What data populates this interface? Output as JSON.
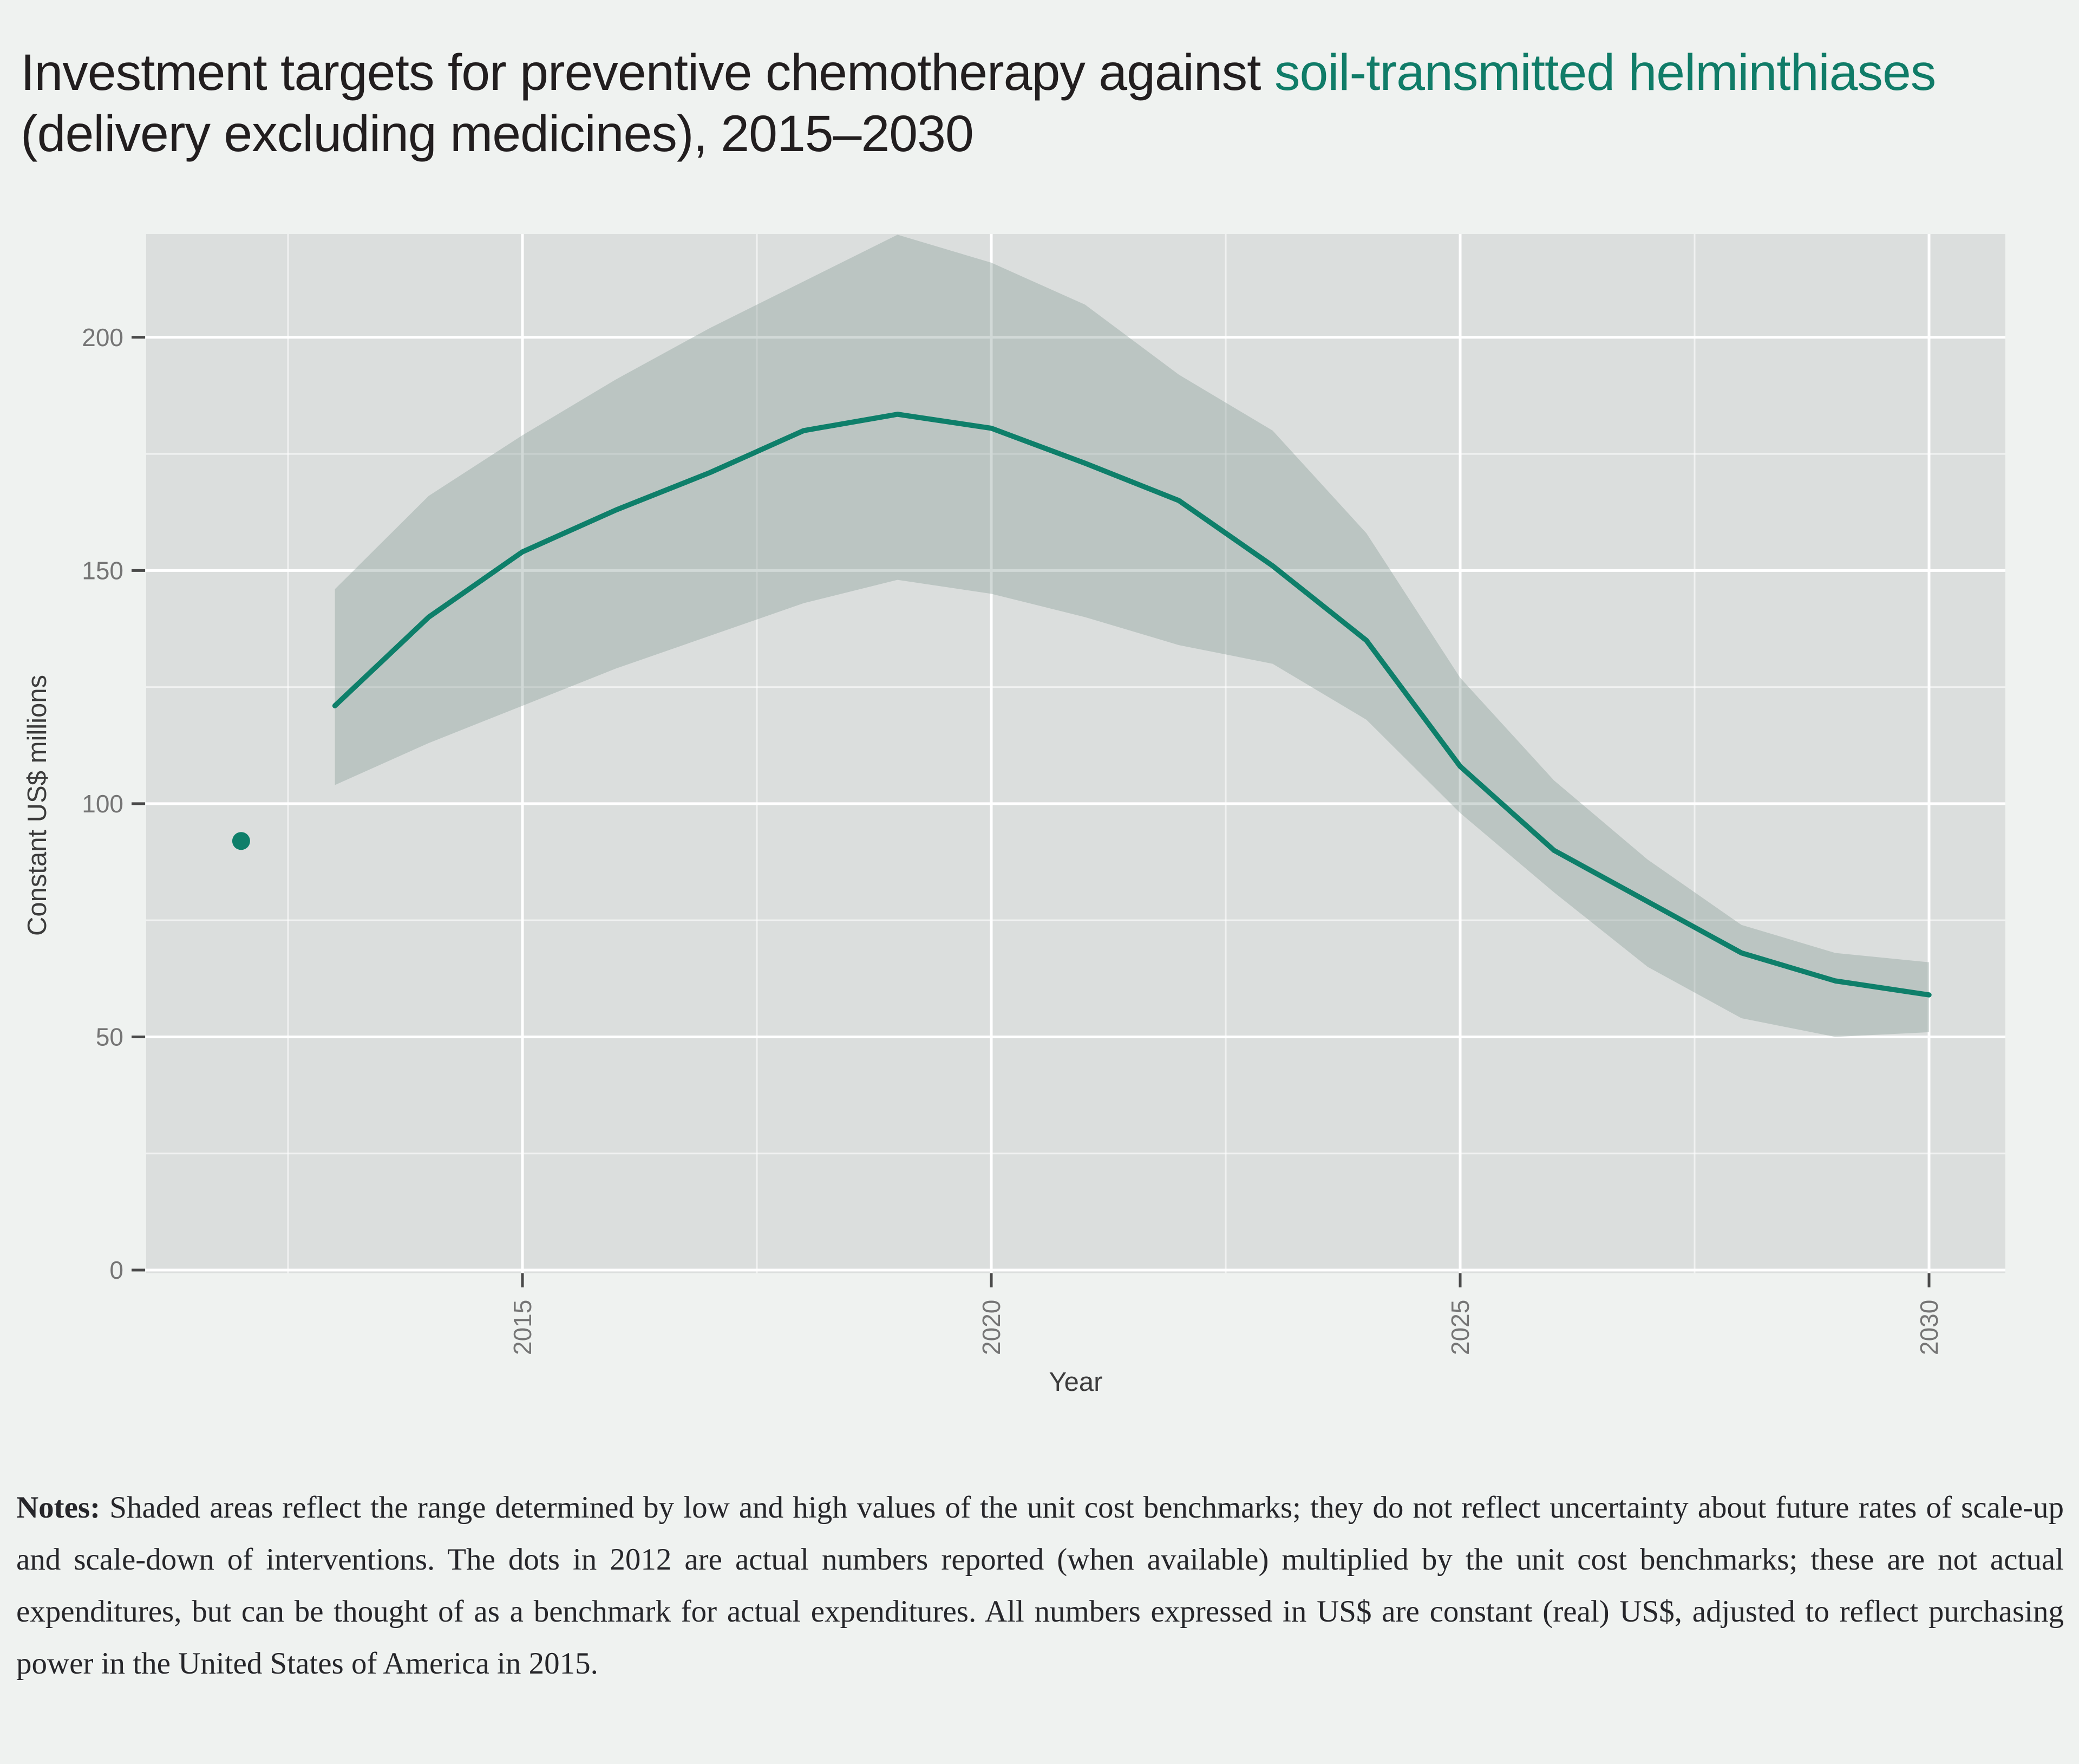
{
  "title": {
    "part1": "Investment targets for preventive chemotherapy against ",
    "highlight": "soil-transmitted helminthiases",
    "part2": " (delivery excluding medicines), 2015–2030"
  },
  "notes": {
    "label": "Notes:",
    "text": " Shaded areas reflect the range determined by low and high values of the unit cost benchmarks; they do not reflect uncertainty about future rates of scale-up and scale-down of interventions. The dots in 2012 are actual numbers reported (when available) multiplied by the unit cost benchmarks; these are not actual expenditures, but can be thought of as a benchmark for actual expenditures. All numbers expressed in US$ are constant (real) US$, adjusted to reflect purchasing power in the United States of America in 2015."
  },
  "chart_data": {
    "type": "line",
    "xlabel": "Year",
    "ylabel": "Constant US$ millions",
    "xlim": [
      2011,
      2030.8
    ],
    "ylim": [
      0,
      222.2
    ],
    "x_ticks": [
      2015,
      2020,
      2025,
      2030
    ],
    "x_tick_labels": [
      "2015",
      "2020",
      "2025",
      "2030"
    ],
    "y_ticks": [
      0,
      50,
      100,
      150,
      200
    ],
    "y_tick_labels": [
      "0",
      "50",
      "100",
      "150",
      "200"
    ],
    "grid": true,
    "legend_position": "none",
    "x": [
      2013,
      2014,
      2015,
      2016,
      2017,
      2018,
      2019,
      2020,
      2021,
      2022,
      2023,
      2024,
      2025,
      2026,
      2027,
      2028,
      2029,
      2030
    ],
    "series": [
      {
        "name": "investment-target-line",
        "type": "line",
        "color": "#0e7f6a",
        "values": [
          121,
          140,
          154,
          163,
          171,
          180,
          183.5,
          180.5,
          173,
          165,
          151,
          135,
          108,
          90,
          79,
          68,
          62,
          59
        ]
      }
    ],
    "band": {
      "name": "unit-cost-benchmark-range",
      "color": "#8da09a",
      "opacity": 0.4,
      "upper": [
        146,
        166,
        179,
        191,
        202,
        212,
        222,
        216,
        207,
        192,
        180,
        158,
        127,
        105,
        88,
        74,
        68,
        66
      ],
      "lower": [
        104,
        113,
        121,
        129,
        136,
        143,
        148,
        145,
        140,
        134,
        130,
        118,
        98,
        81,
        65,
        54,
        50,
        51
      ]
    },
    "points": [
      {
        "name": "actual-2012-dot",
        "x": 2012,
        "value": 92,
        "color": "#0e7f6a",
        "radius": 16.5
      }
    ]
  },
  "colors": {
    "page_bg": "#eff2f0",
    "panel_bg": "#dbdedd",
    "grid": "#ffffff",
    "accent_teal": "#0e7f6a",
    "title_green": "#107c68",
    "title_black": "#221e1f",
    "tick_text": "#757575",
    "axis_text": "#3c3c3c"
  }
}
